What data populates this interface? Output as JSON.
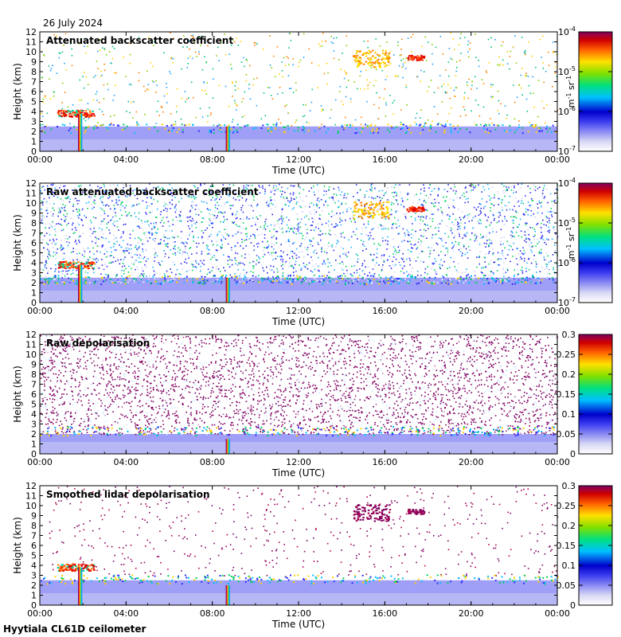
{
  "date": "26 July 2024",
  "footer": "Hyytiala CL61D ceilometer",
  "time_ticks": [
    "00:00",
    "04:00",
    "08:00",
    "12:00",
    "16:00",
    "20:00",
    "00:00"
  ],
  "height_ticks": [
    "0",
    "1",
    "2",
    "3",
    "4",
    "5",
    "6",
    "7",
    "8",
    "9",
    "10",
    "11",
    "12"
  ],
  "xlabel": "Time (UTC)",
  "ylabel": "Height (km)",
  "chart_data": [
    {
      "type": "heatmap",
      "title": "Attenuated backscatter coefficient",
      "x_range_hours": [
        0,
        24
      ],
      "y_range_km": [
        0,
        12
      ],
      "colorbar": {
        "scale": "log",
        "range": [
          1e-07,
          0.0001
        ],
        "ticks": [
          {
            "base": "10",
            "exp": "-4"
          },
          {
            "base": "10",
            "exp": "-5"
          },
          {
            "base": "10",
            "exp": "-6"
          },
          {
            "base": "10",
            "exp": "-7"
          }
        ],
        "unit": {
          "m": "m",
          "m_exp": "-1",
          "sr": "sr",
          "sr_exp": "-1"
        }
      },
      "features": {
        "background_noise": "sparse",
        "boundary_layer_top_km": 2.5,
        "aerosol_layer_km": [
          0,
          2.5
        ],
        "cloud_bands": [
          {
            "t0": 0.8,
            "t1": 2.5,
            "h0": 3.5,
            "h1": 4.2,
            "level": "high"
          },
          {
            "t0": 14.5,
            "t1": 16.2,
            "h0": 8.5,
            "h1": 10.2,
            "level": "mid"
          },
          {
            "t0": 17.0,
            "t1": 17.8,
            "h0": 9.2,
            "h1": 9.7,
            "level": "peak"
          }
        ],
        "precip_columns": [
          {
            "t": 1.85,
            "h_top": 3.8
          },
          {
            "t": 8.7,
            "h_top": 2.5
          }
        ]
      }
    },
    {
      "type": "heatmap",
      "title": "Raw attenuated backscatter coefficient",
      "x_range_hours": [
        0,
        24
      ],
      "y_range_km": [
        0,
        12
      ],
      "colorbar": {
        "scale": "log",
        "range": [
          1e-07,
          0.0001
        ],
        "ticks": [
          {
            "base": "10",
            "exp": "-4"
          },
          {
            "base": "10",
            "exp": "-5"
          },
          {
            "base": "10",
            "exp": "-6"
          },
          {
            "base": "10",
            "exp": "-7"
          }
        ],
        "unit": {
          "m": "m",
          "m_exp": "-1",
          "sr": "sr",
          "sr_exp": "-1"
        }
      },
      "features": {
        "background_noise": "dense",
        "boundary_layer_top_km": 2.5,
        "aerosol_layer_km": [
          0,
          2.5
        ],
        "cloud_bands": [
          {
            "t0": 0.8,
            "t1": 2.5,
            "h0": 3.5,
            "h1": 4.2,
            "level": "high"
          },
          {
            "t0": 14.5,
            "t1": 16.2,
            "h0": 8.5,
            "h1": 10.2,
            "level": "mid"
          },
          {
            "t0": 17.0,
            "t1": 17.8,
            "h0": 9.2,
            "h1": 9.7,
            "level": "peak"
          }
        ],
        "precip_columns": [
          {
            "t": 1.85,
            "h_top": 3.8
          },
          {
            "t": 8.7,
            "h_top": 2.5
          }
        ]
      }
    },
    {
      "type": "heatmap",
      "title": "Raw depolarisation",
      "x_range_hours": [
        0,
        24
      ],
      "y_range_km": [
        0,
        12
      ],
      "colorbar": {
        "scale": "linear",
        "range": [
          0,
          0.3
        ],
        "ticks": [
          "0.3",
          "0.25",
          "0.2",
          "0.15",
          "0.1",
          "0.05",
          "0"
        ]
      },
      "features": {
        "background_noise": "saturated",
        "boundary_layer_top_km": 2.5,
        "aerosol_layer_km": [
          0,
          2.0
        ],
        "cloud_bands": [],
        "precip_columns": [
          {
            "t": 8.7,
            "h_top": 1.5
          }
        ]
      }
    },
    {
      "type": "heatmap",
      "title": "Smoothed lidar depolarisation",
      "x_range_hours": [
        0,
        24
      ],
      "y_range_km": [
        0,
        12
      ],
      "colorbar": {
        "scale": "linear",
        "range": [
          0,
          0.3
        ],
        "ticks": [
          "0.3",
          "0.25",
          "0.2",
          "0.15",
          "0.1",
          "0.05",
          "0"
        ]
      },
      "features": {
        "background_noise": "sparse-purple",
        "boundary_layer_top_km": 2.8,
        "aerosol_layer_km": [
          0,
          2.5
        ],
        "cloud_bands": [
          {
            "t0": 0.8,
            "t1": 2.5,
            "h0": 3.5,
            "h1": 4.2,
            "level": "high"
          },
          {
            "t0": 14.5,
            "t1": 16.2,
            "h0": 8.5,
            "h1": 10.2,
            "level": "purple"
          },
          {
            "t0": 17.0,
            "t1": 17.8,
            "h0": 9.2,
            "h1": 9.7,
            "level": "purple"
          }
        ],
        "precip_columns": [
          {
            "t": 1.85,
            "h_top": 3.8
          },
          {
            "t": 8.7,
            "h_top": 2.0
          }
        ]
      }
    }
  ]
}
